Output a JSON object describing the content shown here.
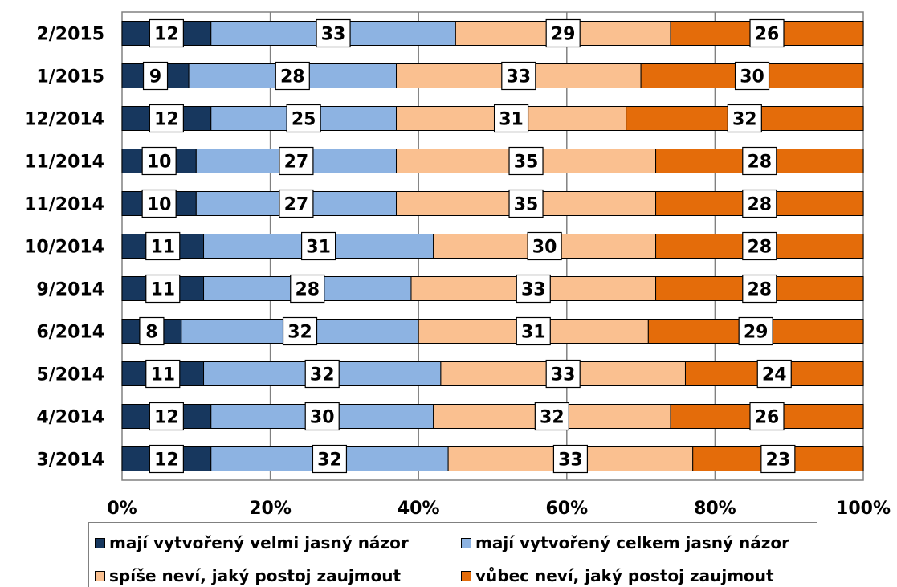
{
  "chart_data": {
    "type": "bar",
    "orientation": "horizontal",
    "stacked": "percent",
    "categories": [
      "2/2015",
      "1/2015",
      "12/2014",
      "11/2014",
      "11/2014",
      "10/2014",
      "9/2014",
      "6/2014",
      "5/2014",
      "4/2014",
      "3/2014"
    ],
    "series": [
      {
        "name": "mají vytvořený velmi jasný názor",
        "color": "#17375e",
        "values": [
          12,
          9,
          12,
          10,
          10,
          11,
          11,
          8,
          11,
          12,
          12
        ]
      },
      {
        "name": "mají vytvořený celkem jasný názor",
        "color": "#8db3e2",
        "values": [
          33,
          28,
          25,
          27,
          27,
          31,
          28,
          32,
          32,
          30,
          32
        ]
      },
      {
        "name": "spíše neví, jaký postoj zaujmout",
        "color": "#fac090",
        "values": [
          29,
          33,
          31,
          35,
          35,
          30,
          33,
          31,
          33,
          32,
          33
        ]
      },
      {
        "name": "vůbec neví, jaký postoj zaujmout",
        "color": "#e46c0a",
        "values": [
          26,
          30,
          32,
          28,
          28,
          28,
          28,
          29,
          24,
          26,
          23
        ]
      }
    ],
    "xticks": [
      "0%",
      "20%",
      "40%",
      "60%",
      "80%",
      "100%"
    ],
    "xlim": [
      0,
      100
    ],
    "grid": true,
    "legend_position": "bottom"
  }
}
